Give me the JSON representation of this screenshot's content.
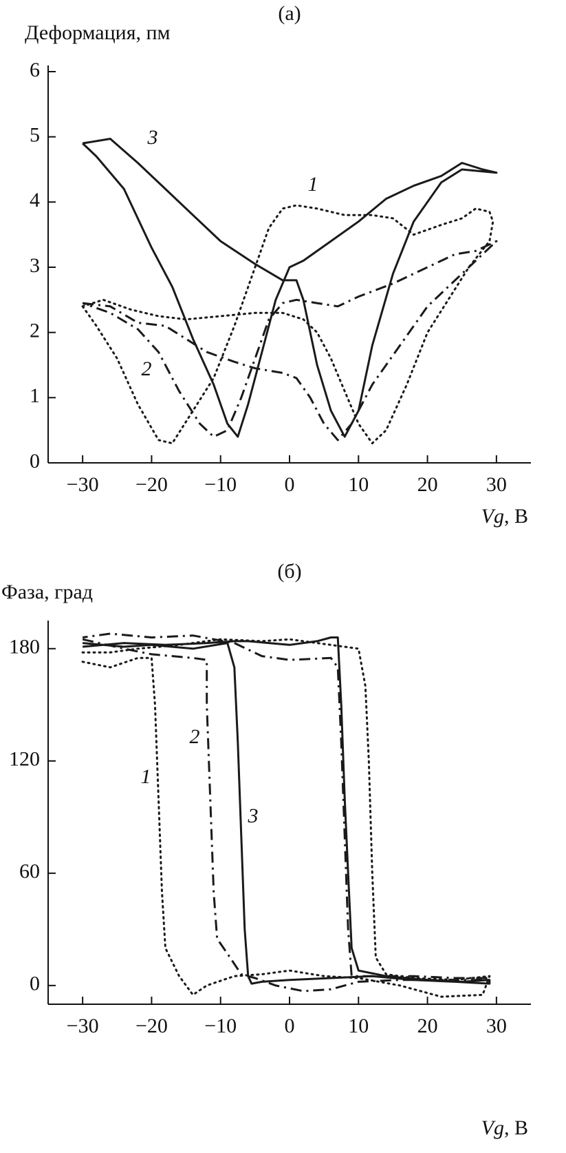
{
  "chart_data": [
    {
      "type": "line",
      "title": "(а)",
      "y_label": "Деформация, пм",
      "x_label_symbol": "Vg",
      "x_label_unit": ", В",
      "xlim": [
        -35,
        35
      ],
      "ylim": [
        0,
        6
      ],
      "xticks": [
        {
          "value": -30,
          "label": "−30"
        },
        {
          "value": -20,
          "label": "−20"
        },
        {
          "value": -10,
          "label": "−10"
        },
        0,
        10,
        20,
        30
      ],
      "yticks": [
        0,
        1,
        2,
        3,
        4,
        5,
        6
      ],
      "series": [
        {
          "name": "1",
          "color": "#1a1a1a",
          "dash": "dotted",
          "x": [
            -30,
            -27,
            -23,
            -19,
            -15,
            -10,
            -5,
            -1,
            2,
            4,
            6,
            8,
            10,
            12,
            14,
            17,
            20,
            23,
            26,
            29,
            29.5,
            29,
            27,
            25,
            22,
            18,
            15,
            12,
            8,
            4,
            1,
            -1,
            -3,
            -5,
            -8,
            -11,
            -14,
            -17,
            -19,
            -22,
            -25,
            -28,
            -30
          ],
          "values": [
            2.4,
            2.5,
            2.35,
            2.25,
            2.2,
            2.25,
            2.3,
            2.3,
            2.2,
            2.0,
            1.6,
            1.1,
            0.6,
            0.3,
            0.5,
            1.2,
            2.0,
            2.5,
            3.0,
            3.4,
            3.7,
            3.85,
            3.9,
            3.75,
            3.65,
            3.5,
            3.75,
            3.8,
            3.8,
            3.9,
            3.95,
            3.9,
            3.6,
            3.0,
            2.1,
            1.3,
            0.8,
            0.3,
            0.35,
            0.9,
            1.6,
            2.1,
            2.4
          ]
        },
        {
          "name": "2",
          "color": "#1a1a1a",
          "dash": "dashdot",
          "x": [
            -30,
            -26,
            -22,
            -18,
            -15,
            -12,
            -8,
            -5,
            -1,
            1,
            3,
            5,
            7,
            9,
            12,
            16,
            20,
            24,
            28,
            30,
            27,
            24,
            20,
            15,
            10,
            7,
            4,
            1,
            -1,
            -3,
            -5,
            -7,
            -9,
            -11,
            -13,
            -16,
            -19,
            -22,
            -26,
            -30
          ],
          "values": [
            2.45,
            2.4,
            2.15,
            2.1,
            1.9,
            1.7,
            1.55,
            1.45,
            1.38,
            1.3,
            1.0,
            0.6,
            0.35,
            0.6,
            1.2,
            1.8,
            2.4,
            2.8,
            3.2,
            3.4,
            3.25,
            3.2,
            3.0,
            2.75,
            2.55,
            2.4,
            2.45,
            2.5,
            2.45,
            2.2,
            1.6,
            1.0,
            0.5,
            0.4,
            0.6,
            1.1,
            1.7,
            2.05,
            2.3,
            2.45
          ]
        },
        {
          "name": "3",
          "color": "#1a1a1a",
          "dash": "solid",
          "x": [
            -30,
            -26,
            -22,
            -18,
            -14,
            -10,
            -5,
            -1,
            1,
            2,
            4,
            6,
            8,
            10,
            12,
            15,
            18,
            22,
            25,
            30,
            28,
            25,
            22,
            18,
            14,
            10,
            6,
            2,
            0,
            -2,
            -4,
            -6,
            -7.5,
            -9,
            -11,
            -14,
            -17,
            -20,
            -24,
            -28,
            -30
          ],
          "values": [
            4.9,
            4.97,
            4.6,
            4.2,
            3.8,
            3.4,
            3.05,
            2.8,
            2.8,
            2.5,
            1.5,
            0.8,
            0.4,
            0.8,
            1.8,
            2.9,
            3.7,
            4.3,
            4.5,
            4.45,
            4.5,
            4.6,
            4.4,
            4.25,
            4.05,
            3.7,
            3.4,
            3.1,
            3.0,
            2.5,
            1.7,
            0.9,
            0.4,
            0.6,
            1.2,
            1.9,
            2.7,
            3.3,
            4.2,
            4.7,
            4.9
          ]
        }
      ]
    },
    {
      "type": "line",
      "title": "(б)",
      "y_label": "Фаза, град",
      "x_label_symbol": "Vg",
      "x_label_unit": ", В",
      "xlim": [
        -35,
        35
      ],
      "ylim": [
        -10,
        195
      ],
      "xticks": [
        {
          "value": -30,
          "label": "−30"
        },
        {
          "value": -20,
          "label": "−20"
        },
        {
          "value": -10,
          "label": "−10"
        },
        0,
        10,
        20,
        30
      ],
      "yticks": [
        0,
        60,
        120,
        180
      ],
      "series": [
        {
          "name": "1",
          "color": "#1a1a1a",
          "dash": "dotted",
          "x": [
            -30,
            -26,
            -22,
            -20,
            -19.5,
            -19,
            -18.5,
            -18,
            -16,
            -14,
            -12,
            -8,
            -4,
            0,
            5,
            10,
            16,
            22,
            28,
            29,
            24,
            18,
            14,
            12.5,
            12,
            11.5,
            11,
            10,
            6,
            0,
            -4,
            -10,
            -16,
            -22,
            -26,
            -30
          ],
          "values": [
            173,
            170,
            175,
            175,
            150,
            100,
            50,
            20,
            5,
            -5,
            0,
            5,
            6,
            8,
            5,
            4,
            0,
            -6,
            -5,
            5,
            3,
            4,
            6,
            15,
            60,
            120,
            160,
            180,
            182,
            185,
            184,
            185,
            182,
            180,
            178,
            178
          ]
        },
        {
          "name": "2",
          "color": "#1a1a1a",
          "dash": "dashdot",
          "x": [
            -30,
            -24,
            -20,
            -14,
            -12,
            -12,
            -11.5,
            -11,
            -10.5,
            -9,
            -7,
            -5,
            -2,
            2,
            6,
            10,
            16,
            22,
            29,
            29,
            24,
            18,
            12,
            9,
            8.5,
            8,
            7.5,
            7,
            6,
            0,
            -4,
            -8,
            -14,
            -20,
            -26,
            -30
          ],
          "values": [
            185,
            180,
            177,
            175,
            174,
            150,
            100,
            50,
            25,
            17,
            6,
            4,
            0,
            -3,
            -2,
            2,
            3,
            3,
            3,
            4,
            4,
            5,
            5,
            5,
            30,
            80,
            130,
            170,
            175,
            174,
            176,
            183,
            187,
            186,
            188,
            186
          ]
        },
        {
          "name": "3",
          "color": "#1a1a1a",
          "dash": "solid",
          "x": [
            -30,
            -24,
            -18,
            -12,
            -8,
            -6,
            0,
            4,
            6,
            7,
            7.5,
            8,
            8.5,
            9,
            10,
            14,
            20,
            25,
            29,
            29,
            24,
            18,
            12,
            6,
            0,
            -4,
            -5.5,
            -6,
            -6.5,
            -7,
            -7.5,
            -8,
            -9,
            -14,
            -20,
            -24,
            -30
          ],
          "values": [
            181,
            183,
            182,
            183,
            184,
            184,
            182,
            184,
            186,
            186,
            150,
            100,
            60,
            20,
            8,
            5,
            3,
            2,
            3,
            1,
            2,
            3,
            5,
            4,
            3,
            2,
            1,
            5,
            30,
            80,
            130,
            170,
            183,
            180,
            182,
            181,
            183
          ]
        }
      ]
    }
  ]
}
